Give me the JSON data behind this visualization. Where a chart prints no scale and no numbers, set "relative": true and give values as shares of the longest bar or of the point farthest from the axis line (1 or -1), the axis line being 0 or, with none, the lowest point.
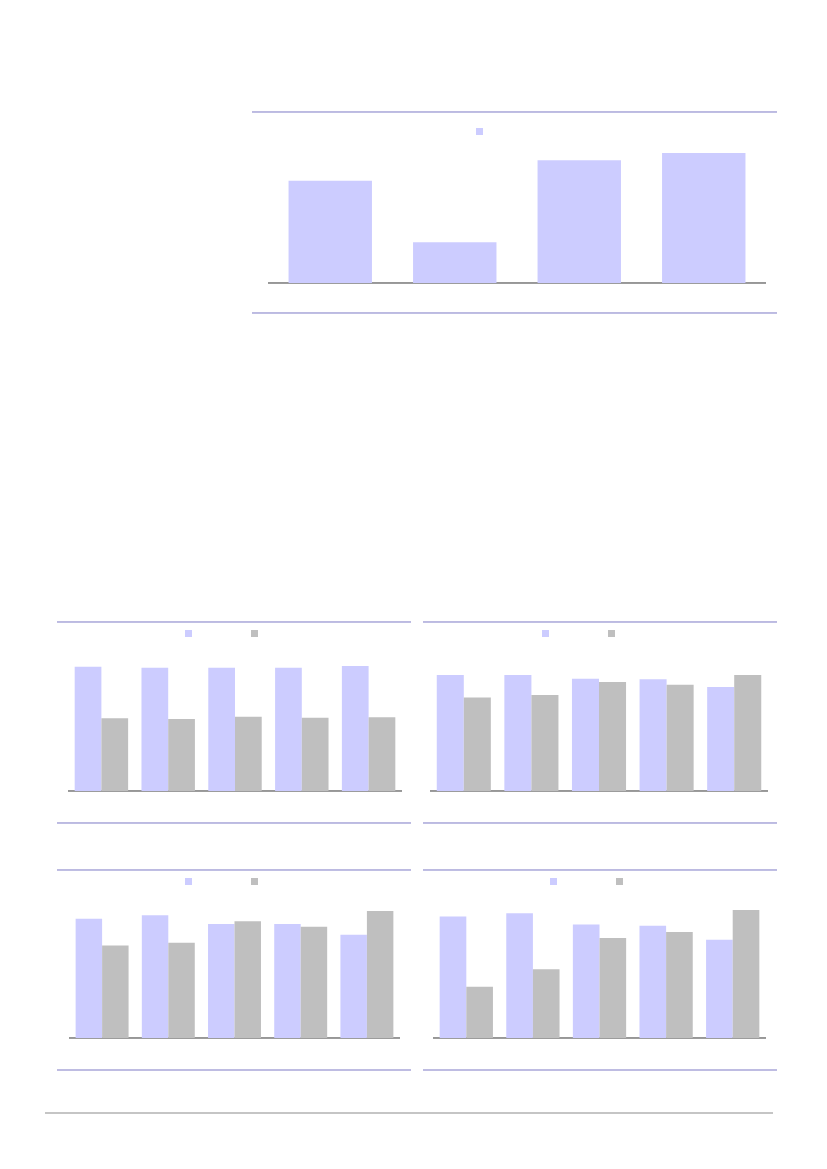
{
  "chart_data": [
    {
      "type": "bar",
      "relative": true,
      "categories": [
        null,
        null,
        null,
        null
      ],
      "series": [
        {
          "color": "#ccccff",
          "values": [
            0.786,
            0.313,
            0.945,
            1
          ]
        }
      ]
    },
    {
      "type": "bar",
      "relative": true,
      "categories": [
        null,
        null,
        null,
        null,
        null
      ],
      "series": [
        {
          "color": "#ccccff",
          "values": [
            0.993,
            0.985,
            0.985,
            0.985,
            1
          ]
        },
        {
          "color": "#bfbfbf",
          "values": [
            0.582,
            0.575,
            0.593,
            0.586,
            0.59
          ]
        }
      ]
    },
    {
      "type": "bar",
      "relative": true,
      "categories": [
        null,
        null,
        null,
        null,
        null
      ],
      "series": [
        {
          "color": "#ccccff",
          "values": [
            1,
            1,
            0.968,
            0.964,
            0.896
          ]
        },
        {
          "color": "#bfbfbf",
          "values": [
            0.807,
            0.827,
            0.94,
            0.916,
            1
          ]
        }
      ]
    },
    {
      "type": "bar",
      "relative": true,
      "categories": [
        null,
        null,
        null,
        null,
        null
      ],
      "series": [
        {
          "color": "#ccccff",
          "values": [
            0.938,
            0.967,
            0.897,
            0.897,
            0.813
          ]
        },
        {
          "color": "#bfbfbf",
          "values": [
            0.728,
            0.75,
            0.919,
            0.875,
            1
          ]
        }
      ]
    },
    {
      "type": "bar",
      "relative": true,
      "categories": [
        null,
        null,
        null,
        null,
        null
      ],
      "series": [
        {
          "color": "#ccccff",
          "values": [
            0.949,
            0.975,
            0.887,
            0.876,
            0.767
          ]
        },
        {
          "color": "#bfbfbf",
          "values": [
            0.4,
            0.538,
            0.782,
            0.829,
            1
          ]
        }
      ]
    }
  ]
}
